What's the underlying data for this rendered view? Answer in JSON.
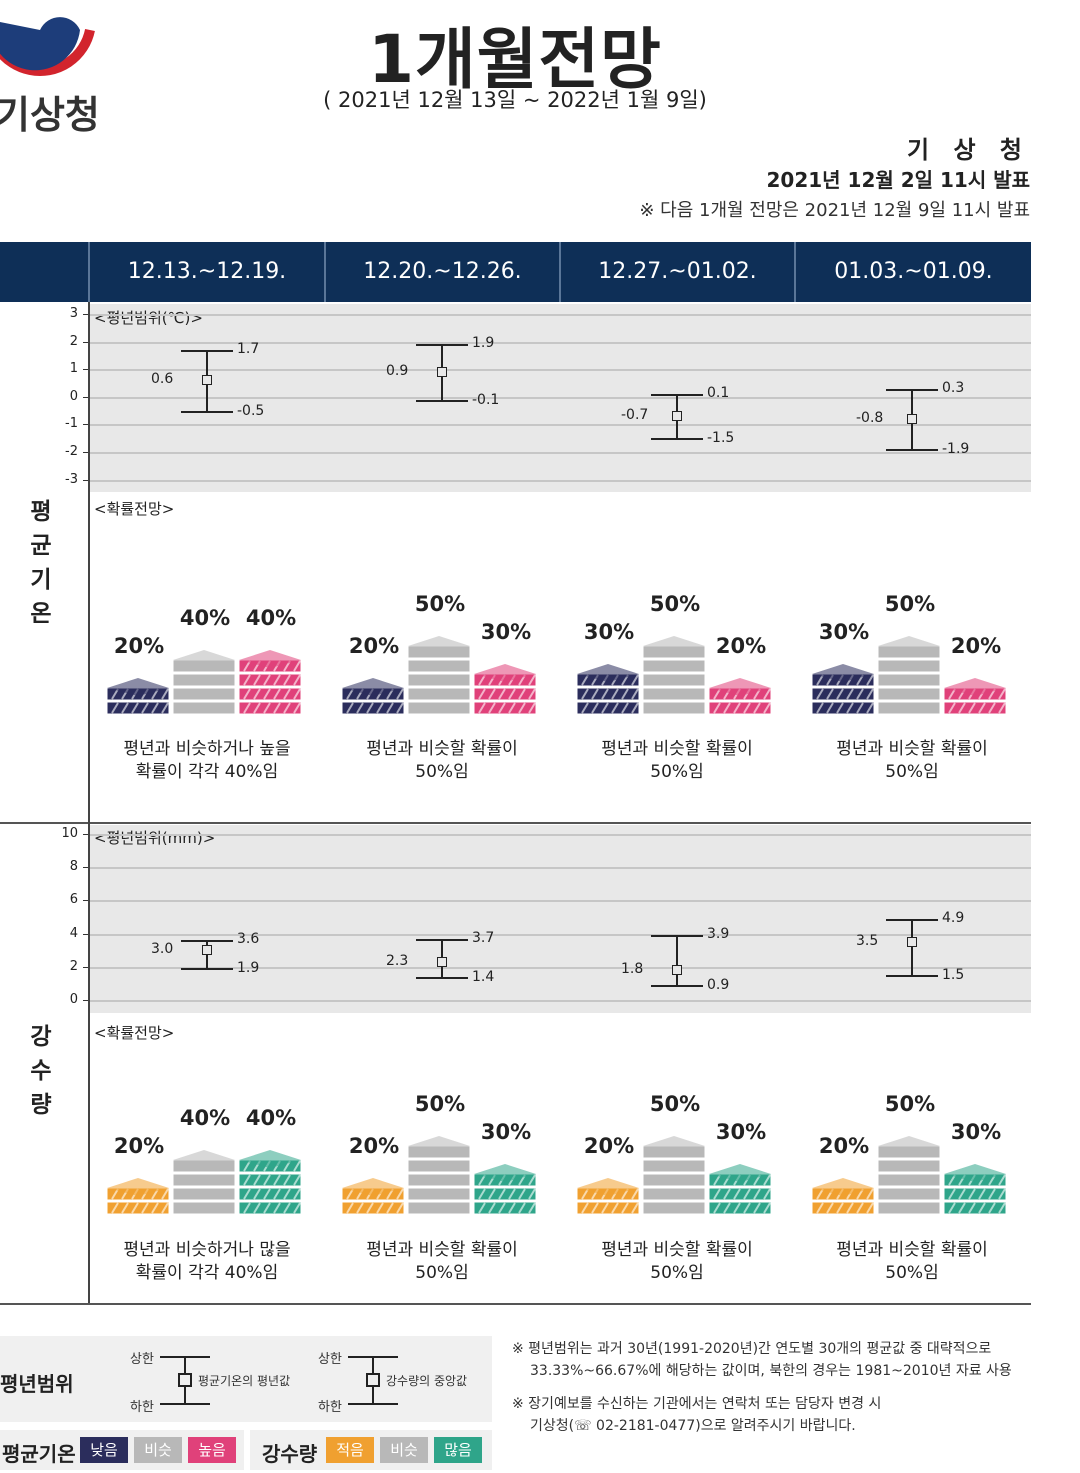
{
  "header": {
    "agency_logo_text": "기상청",
    "title": "1개월전망",
    "period": "( 2021년 12월 13일 ~ 2022년 1월 9일)",
    "issuer": "기 상 청",
    "issued": "2021년 12월 2일 11시 발표",
    "next_note": "※ 다음 1개월 전망은 2021년 12월 9일 11시 발표"
  },
  "weeks": [
    "12.13.~12.19.",
    "12.20.~12.26.",
    "12.27.~01.02.",
    "01.03.~01.09."
  ],
  "temperature": {
    "section_label": "평균기온",
    "range_label": "<평년범위(℃)>",
    "prob_label": "<확률전망>",
    "y_ticks": [
      "3",
      "2",
      "1",
      "0",
      "-1",
      "-2",
      "-3"
    ],
    "ranges": [
      {
        "mid": "0.6",
        "upper": "1.7",
        "lower": "-0.5"
      },
      {
        "mid": "0.9",
        "upper": "1.9",
        "lower": "-0.1"
      },
      {
        "mid": "-0.7",
        "upper": "0.1",
        "lower": "-1.5"
      },
      {
        "mid": "-0.8",
        "upper": "0.3",
        "lower": "-1.9"
      }
    ],
    "probabilities": [
      {
        "low": "20%",
        "normal": "40%",
        "high": "40%",
        "low_v": 20,
        "normal_v": 40,
        "high_v": 40,
        "desc1": "평년과 비슷하거나 높을",
        "desc2": "확률이 각각 40%임"
      },
      {
        "low": "20%",
        "normal": "50%",
        "high": "30%",
        "low_v": 20,
        "normal_v": 50,
        "high_v": 30,
        "desc1": "평년과 비슷할 확률이",
        "desc2": "50%임"
      },
      {
        "low": "30%",
        "normal": "50%",
        "high": "20%",
        "low_v": 30,
        "normal_v": 50,
        "high_v": 20,
        "desc1": "평년과 비슷할 확률이",
        "desc2": "50%임"
      },
      {
        "low": "30%",
        "normal": "50%",
        "high": "20%",
        "low_v": 30,
        "normal_v": 50,
        "high_v": 20,
        "desc1": "평년과 비슷할 확률이",
        "desc2": "50%임"
      }
    ]
  },
  "precipitation": {
    "section_label": "강수량",
    "range_label": "<평년범위(mm)>",
    "prob_label": "<확률전망>",
    "y_ticks": [
      "10",
      "8",
      "6",
      "4",
      "2",
      "0"
    ],
    "ranges": [
      {
        "mid": "3.0",
        "upper": "3.6",
        "lower": "1.9"
      },
      {
        "mid": "2.3",
        "upper": "3.7",
        "lower": "1.4"
      },
      {
        "mid": "1.8",
        "upper": "3.9",
        "lower": "0.9"
      },
      {
        "mid": "3.5",
        "upper": "4.9",
        "lower": "1.5"
      }
    ],
    "probabilities": [
      {
        "low": "20%",
        "normal": "40%",
        "high": "40%",
        "low_v": 20,
        "normal_v": 40,
        "high_v": 40,
        "desc1": "평년과 비슷하거나 많을",
        "desc2": "확률이 각각 40%임"
      },
      {
        "low": "20%",
        "normal": "50%",
        "high": "30%",
        "low_v": 20,
        "normal_v": 50,
        "high_v": 30,
        "desc1": "평년과 비슷할 확률이",
        "desc2": "50%임"
      },
      {
        "low": "20%",
        "normal": "50%",
        "high": "30%",
        "low_v": 20,
        "normal_v": 50,
        "high_v": 30,
        "desc1": "평년과 비슷할 확률이",
        "desc2": "50%임"
      },
      {
        "low": "20%",
        "normal": "50%",
        "high": "30%",
        "low_v": 20,
        "normal_v": 50,
        "high_v": 30,
        "desc1": "평년과 비슷할 확률이",
        "desc2": "50%임"
      }
    ]
  },
  "legend": {
    "title": "평년범위",
    "upper": "상한",
    "lower": "하한",
    "temp_mid": "평균기온의 평년값",
    "precip_mid": "강수량의 중앙값",
    "temp_label": "평균기온",
    "temp_cats": [
      "낮음",
      "비슷",
      "높음"
    ],
    "precip_label": "강수량",
    "precip_cats": [
      "적음",
      "비슷",
      "많음"
    ]
  },
  "colors": {
    "header_bg": "#0e2f57",
    "temp_low": "#2b2d5c",
    "normal": "#b8b8b8",
    "temp_high": "#e0417a",
    "precip_low": "#f0a030",
    "precip_high": "#2fa58a"
  },
  "notes": {
    "note1a": "※ 평년범위는 과거 30년(1991-2020년)간 연도별 30개의 평균값 중 대략적으로",
    "note1b": "33.33%~66.67%에 해당하는 값이며, 북한의 경우는 1981~2010년 자료 사용",
    "note2a": "※ 장기예보를 수신하는 기관에서는 연락처 또는 담당자 변경 시",
    "note2b": "기상청(☏ 02-2181-0477)으로 알려주시기 바랍니다."
  }
}
